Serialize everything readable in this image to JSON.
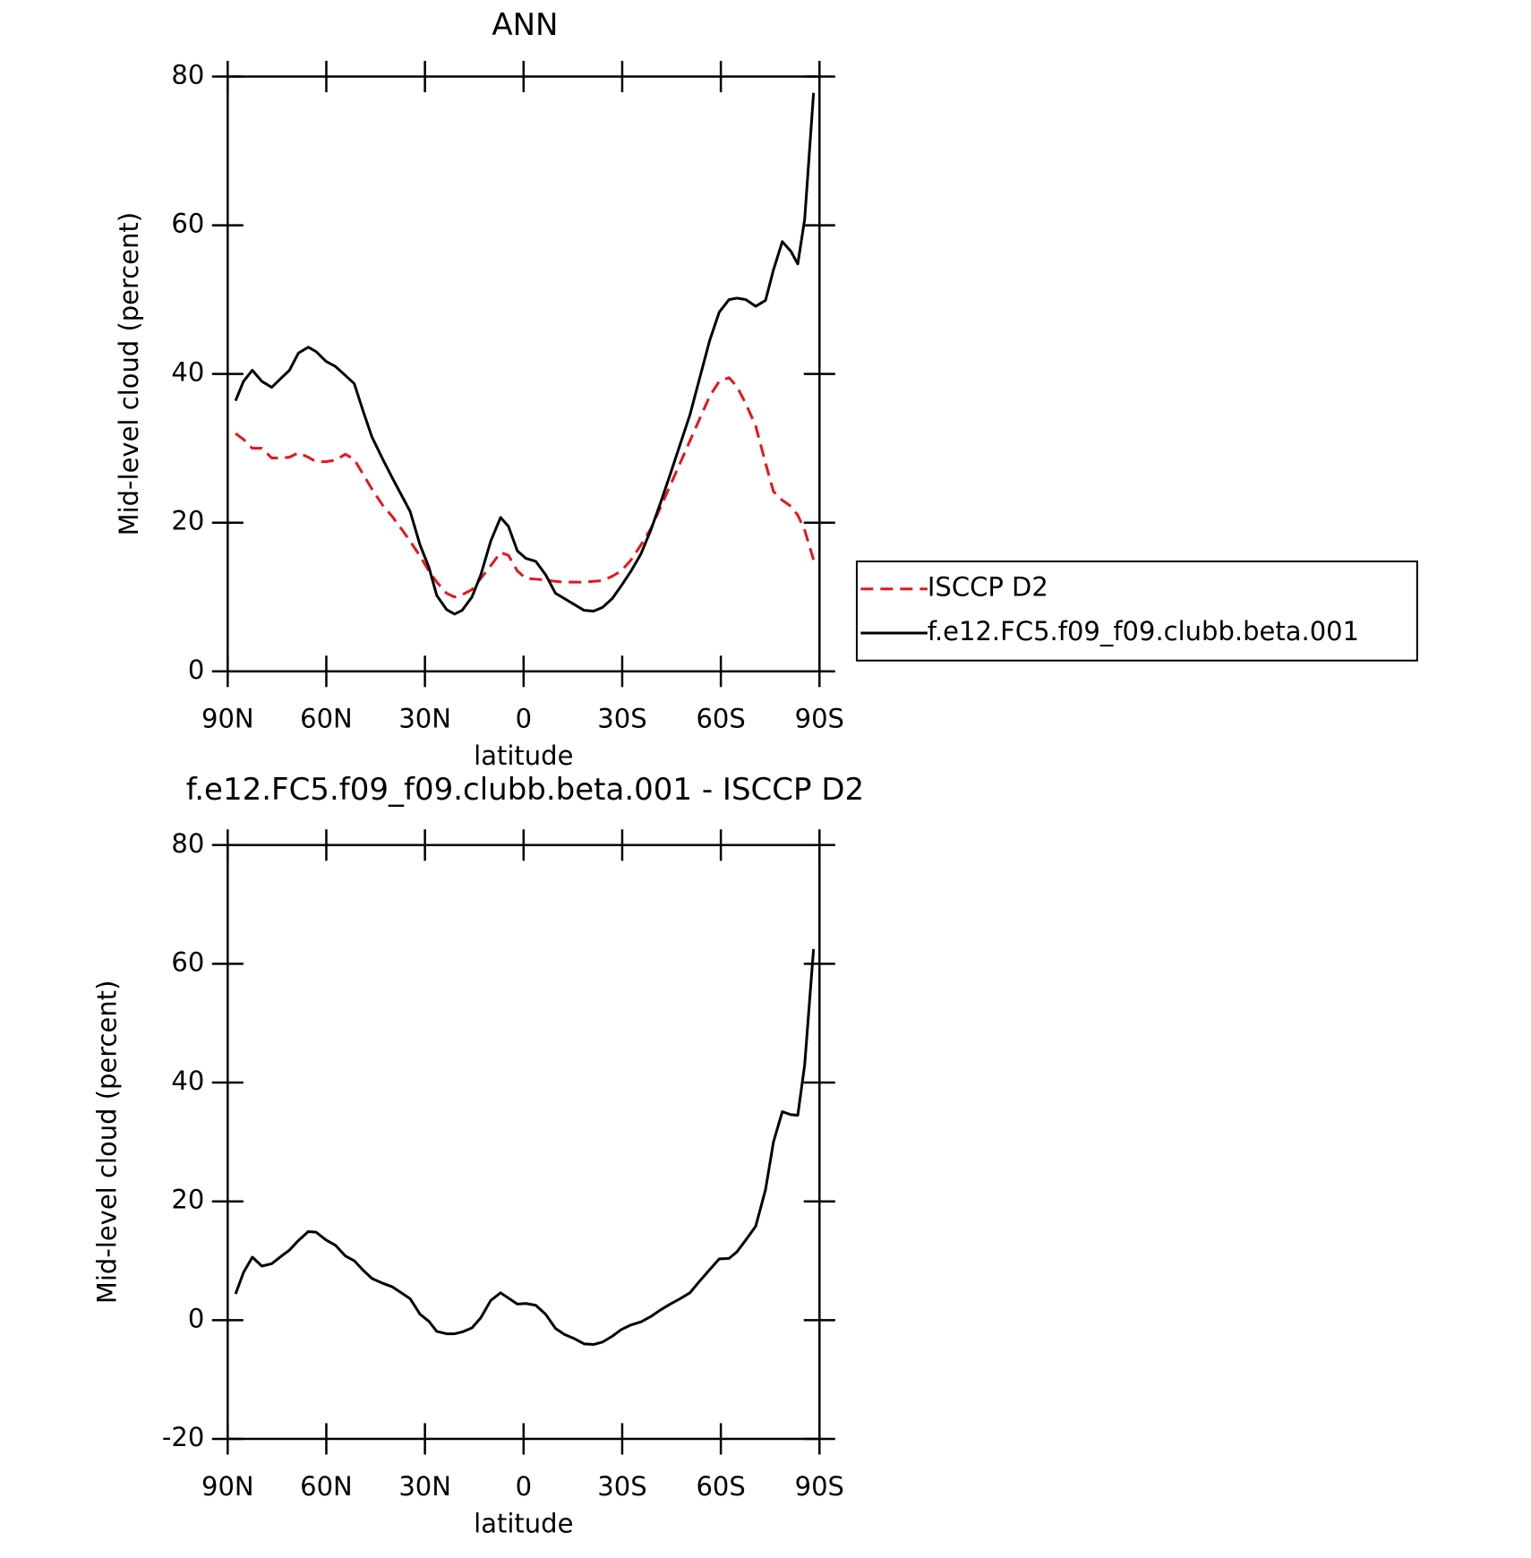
{
  "chart_data": [
    {
      "type": "line",
      "title": "ANN",
      "xlabel": "latitude",
      "ylabel": "Mid-level cloud (percent)",
      "xlim": [
        90,
        -90
      ],
      "ylim": [
        0,
        80
      ],
      "xticks": [
        {
          "value": 90,
          "label": "90N"
        },
        {
          "value": 60,
          "label": "60N"
        },
        {
          "value": 30,
          "label": "30N"
        },
        0,
        {
          "value": -30,
          "label": "30S"
        },
        {
          "value": -60,
          "label": "60S"
        },
        {
          "value": -90,
          "label": "90S"
        }
      ],
      "yticks": [
        0,
        20,
        40,
        60,
        80
      ],
      "x": [
        87.6,
        85.2,
        82.5,
        79.6,
        76.6,
        73.6,
        71.2,
        68.5,
        65.5,
        63.1,
        60.1,
        57.2,
        54.2,
        51.5,
        48.8,
        46.1,
        42.8,
        39.9,
        36.9,
        34.5,
        31.5,
        28.8,
        26.4,
        23.4,
        21.0,
        18.7,
        15.7,
        13.0,
        10.0,
        7.0,
        4.6,
        1.9,
        -0.7,
        -3.7,
        -6.7,
        -9.7,
        -12.4,
        -15.4,
        -18.4,
        -21.3,
        -24.0,
        -27.0,
        -29.7,
        -32.7,
        -35.7,
        -38.7,
        -41.6,
        -44.6,
        -47.6,
        -50.6,
        -53.6,
        -56.6,
        -59.5,
        -62.5,
        -64.9,
        -67.6,
        -70.6,
        -73.6,
        -76.0,
        -78.7,
        -81.3,
        -83.4,
        -85.5,
        -88.2
      ],
      "series": [
        {
          "name": "ISCCP D2",
          "color": "#e8141b",
          "linestyle": "dashed",
          "values": [
            32,
            31.2,
            30,
            30,
            28.7,
            28.7,
            28.8,
            29.4,
            28.8,
            28.2,
            28.2,
            28.4,
            29.2,
            28.5,
            26.5,
            24.5,
            22.3,
            20.8,
            19,
            17.5,
            15.5,
            13.5,
            12,
            10.5,
            10,
            10.3,
            11,
            12.5,
            14.2,
            16,
            15.6,
            13.5,
            12.5,
            12.4,
            12.3,
            12.1,
            12,
            12,
            12,
            12.1,
            12.2,
            12.8,
            13.5,
            15,
            17,
            19.2,
            22,
            25,
            28,
            31,
            34,
            37,
            39,
            39.5,
            38.3,
            36,
            33,
            28,
            24.2,
            23,
            22.2,
            21,
            19,
            15
          ]
        },
        {
          "name": "f.e12.FC5.f09_f09.clubb.beta.001",
          "color": "#000000",
          "linestyle": "solid",
          "values": [
            36.4,
            39,
            40.5,
            39,
            38.2,
            39.5,
            40.5,
            42.8,
            43.6,
            43,
            41.7,
            41,
            39.8,
            38.7,
            35,
            31.5,
            28.5,
            26,
            23.5,
            21.5,
            17,
            14,
            10.2,
            8.3,
            7.7,
            8.2,
            10,
            13,
            17.5,
            20.7,
            19.5,
            16.2,
            15.2,
            14.8,
            13,
            10.5,
            9.8,
            9,
            8.2,
            8.1,
            8.6,
            9.8,
            11.5,
            13.5,
            15.8,
            19,
            22.6,
            26.5,
            30.5,
            34.5,
            39.5,
            44.5,
            48.3,
            50,
            50.2,
            50,
            49.1,
            49.9,
            54,
            57.8,
            56.5,
            54.8,
            60.8,
            77.8
          ]
        }
      ]
    },
    {
      "type": "line",
      "title": "f.e12.FC5.f09_f09.clubb.beta.001 - ISCCP D2",
      "xlabel": "latitude",
      "ylabel": "Mid-level cloud (percent)",
      "xlim": [
        90,
        -90
      ],
      "ylim": [
        -20,
        80
      ],
      "xticks": [
        {
          "value": 90,
          "label": "90N"
        },
        {
          "value": 60,
          "label": "60N"
        },
        {
          "value": 30,
          "label": "30N"
        },
        0,
        {
          "value": -30,
          "label": "30S"
        },
        {
          "value": -60,
          "label": "60S"
        },
        {
          "value": -90,
          "label": "90S"
        }
      ],
      "yticks": [
        -20,
        0,
        20,
        40,
        60,
        80
      ],
      "x": [
        87.6,
        85.2,
        82.5,
        79.6,
        76.6,
        73.6,
        71.2,
        68.5,
        65.5,
        63.1,
        60.1,
        57.2,
        54.2,
        51.5,
        48.8,
        46.1,
        42.8,
        39.9,
        36.9,
        34.5,
        31.5,
        28.8,
        26.4,
        23.4,
        21.0,
        18.7,
        15.7,
        13.0,
        10.0,
        7.0,
        4.6,
        1.9,
        -0.7,
        -3.7,
        -6.7,
        -9.7,
        -12.4,
        -15.4,
        -18.4,
        -21.3,
        -24.0,
        -27.0,
        -29.7,
        -32.7,
        -35.7,
        -38.7,
        -41.6,
        -44.6,
        -47.6,
        -50.6,
        -53.6,
        -56.6,
        -59.5,
        -62.5,
        -64.9,
        -67.6,
        -70.6,
        -73.6,
        -76.0,
        -78.7,
        -81.3,
        -83.4,
        -85.5,
        -88.2
      ],
      "series": [
        {
          "color": "#000000",
          "linestyle": "solid",
          "values": [
            4.4,
            8,
            10.6,
            9.1,
            9.5,
            10.8,
            11.8,
            13.4,
            14.9,
            14.8,
            13.5,
            12.6,
            10.8,
            10,
            8.4,
            7,
            6.2,
            5.6,
            4.5,
            3.6,
            1,
            -0.2,
            -1.9,
            -2.3,
            -2.3,
            -2,
            -1.3,
            0.4,
            3.3,
            4.6,
            3.7,
            2.7,
            2.8,
            2.5,
            1,
            -1.4,
            -2.4,
            -3.1,
            -4,
            -4.1,
            -3.7,
            -2.7,
            -1.6,
            -0.8,
            -0.3,
            0.6,
            1.7,
            2.7,
            3.6,
            4.6,
            6.6,
            8.5,
            10.3,
            10.4,
            11.5,
            13.5,
            15.8,
            22,
            30,
            35.1,
            34.6,
            34.5,
            43,
            62.5
          ]
        }
      ]
    }
  ]
}
